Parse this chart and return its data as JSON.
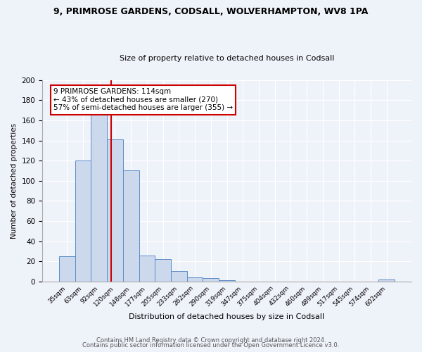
{
  "title": "9, PRIMROSE GARDENS, CODSALL, WOLVERHAMPTON, WV8 1PA",
  "subtitle": "Size of property relative to detached houses in Codsall",
  "xlabel": "Distribution of detached houses by size in Codsall",
  "ylabel": "Number of detached properties",
  "bin_labels": [
    "35sqm",
    "63sqm",
    "92sqm",
    "120sqm",
    "148sqm",
    "177sqm",
    "205sqm",
    "233sqm",
    "262sqm",
    "290sqm",
    "319sqm",
    "347sqm",
    "375sqm",
    "404sqm",
    "432sqm",
    "460sqm",
    "489sqm",
    "517sqm",
    "545sqm",
    "574sqm",
    "602sqm"
  ],
  "bar_heights": [
    25,
    120,
    168,
    141,
    110,
    26,
    22,
    10,
    4,
    3,
    1,
    0,
    0,
    0,
    0,
    0,
    0,
    0,
    0,
    0,
    2
  ],
  "bar_color": "#ccd9ed",
  "bar_edge_color": "#5b8cc8",
  "vline_color": "#cc0000",
  "vline_x": 2.75,
  "annotation_title": "9 PRIMROSE GARDENS: 114sqm",
  "annotation_line1": "← 43% of detached houses are smaller (270)",
  "annotation_line2": "57% of semi-detached houses are larger (355) →",
  "annotation_box_color": "#ffffff",
  "annotation_box_edge": "#cc0000",
  "ylim": [
    0,
    200
  ],
  "yticks": [
    0,
    20,
    40,
    60,
    80,
    100,
    120,
    140,
    160,
    180,
    200
  ],
  "footer1": "Contains HM Land Registry data © Crown copyright and database right 2024.",
  "footer2": "Contains public sector information licensed under the Open Government Licence v3.0.",
  "bg_color": "#eef2f9",
  "plot_bg_color": "#eef2f9",
  "grid_color": "#ffffff"
}
